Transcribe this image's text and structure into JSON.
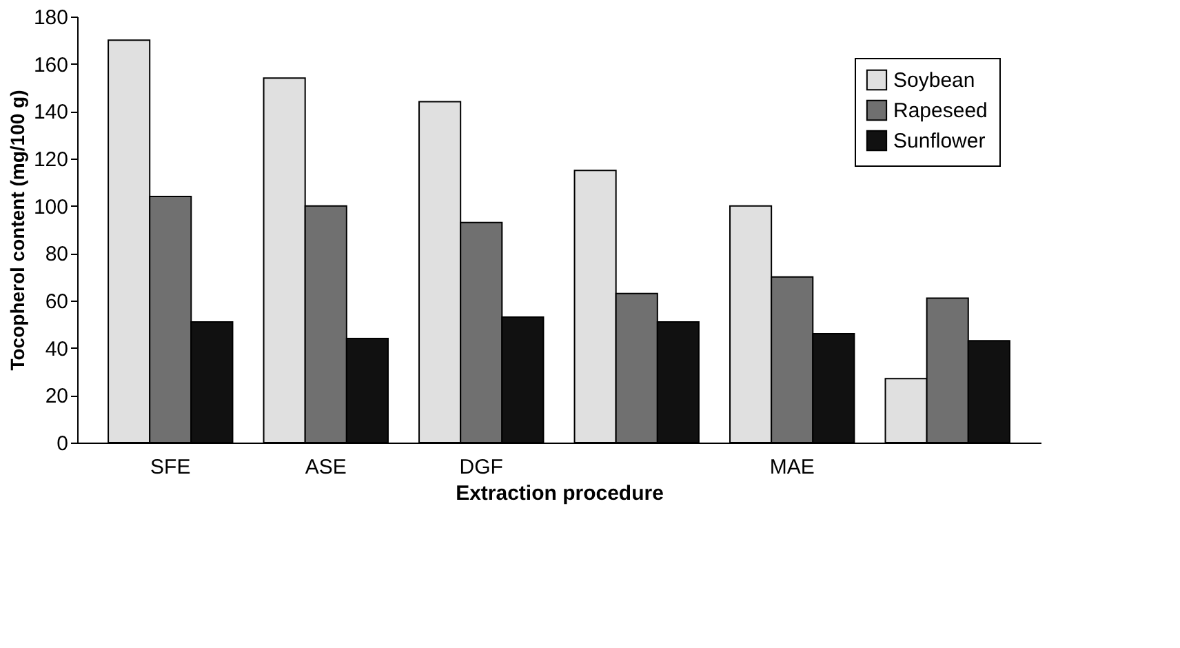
{
  "chart_data": {
    "type": "bar",
    "xlabel": "Extraction procedure",
    "ylabel": "Tocopherol content (mg/100 g)",
    "categories": [
      "SFE",
      "ASE",
      "DGF",
      null,
      "MAE",
      null
    ],
    "series": [
      {
        "name": "Soybean",
        "color": "#e0e0e0",
        "values": [
          170,
          154,
          144,
          115,
          100,
          27
        ]
      },
      {
        "name": "Rapeseed",
        "color": "#707070",
        "values": [
          104,
          100,
          93,
          63,
          70,
          61
        ]
      },
      {
        "name": "Sunflower",
        "color": "#111111",
        "values": [
          51,
          44,
          53,
          51,
          46,
          43
        ]
      }
    ],
    "ylim": [
      0,
      180
    ],
    "yticks": [
      0,
      20,
      40,
      60,
      80,
      100,
      120,
      140,
      160,
      180
    ],
    "grid": false,
    "legend": "top right"
  }
}
